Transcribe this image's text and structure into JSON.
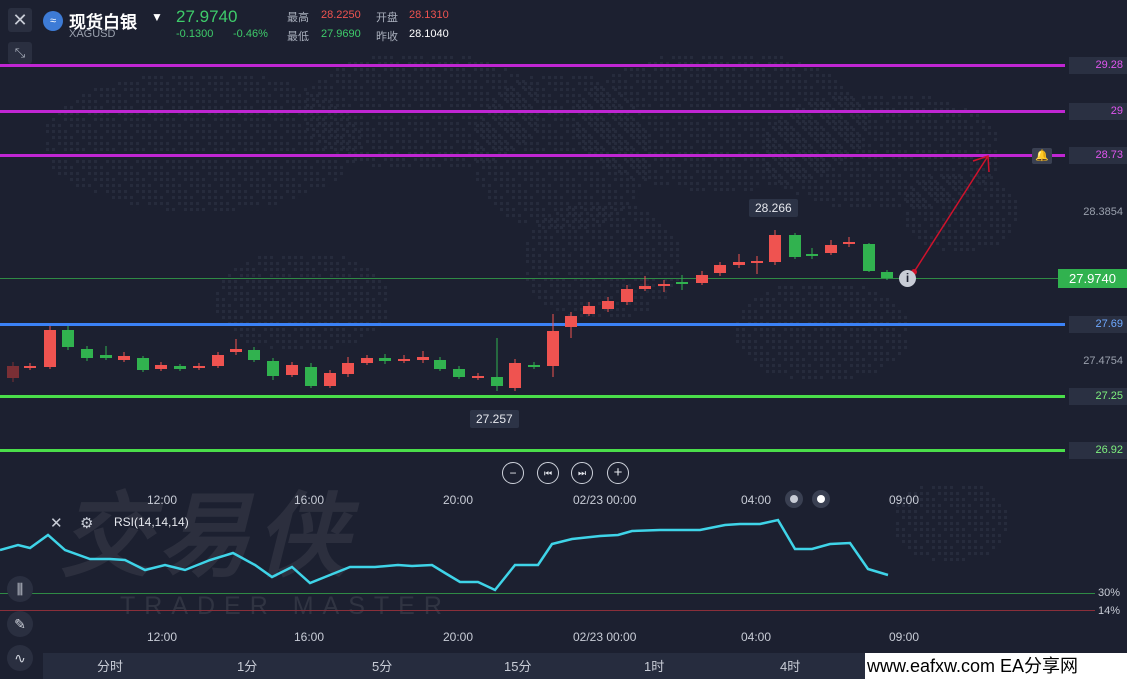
{
  "header": {
    "close_icon": "close-icon",
    "expand_icon": "collapse-arrows-icon",
    "symbol_name": "现货白银",
    "symbol_code": "XAGUSD",
    "last_price": "27.9740",
    "change": "-0.1300",
    "change_pct": "-0.46%",
    "high_label": "最高",
    "high_value": "28.2250",
    "open_label": "开盘",
    "open_value": "28.1310",
    "low_label": "最低",
    "low_value": "27.9690",
    "prev_close_label": "昨收",
    "prev_close_value": "28.1040"
  },
  "levels": {
    "l1": "29.28",
    "l2": "29",
    "l3": "28.73",
    "l4": "27.69",
    "l5": "27.25",
    "l6": "26.92",
    "axis_upper": "28.3854",
    "axis_lower": "27.4754",
    "current": "27.9740",
    "colors": {
      "magenta": "#c026d3",
      "blue": "#3b82f6",
      "green": "#4ade4a"
    }
  },
  "annotations": {
    "high_tag": "28.266",
    "low_tag": "27.257"
  },
  "nav": {
    "zoom_out": "−",
    "prev": "⏮",
    "next": "⏭",
    "zoom_in": "+"
  },
  "time_axis": [
    "12:00",
    "16:00",
    "20:00",
    "02/23 00:00",
    "04:00",
    "09:00"
  ],
  "indicator": {
    "label": "RSI(14,14,14)",
    "level_30": "30%",
    "level_14": "14%"
  },
  "watermark": {
    "brand": "交易侠",
    "sub": "TRADER MASTER"
  },
  "timeframes": [
    "分时",
    "1分",
    "5分",
    "15分",
    "1时",
    "4时"
  ],
  "footer_watermark": "www.eafxw.com  EA分享网"
}
